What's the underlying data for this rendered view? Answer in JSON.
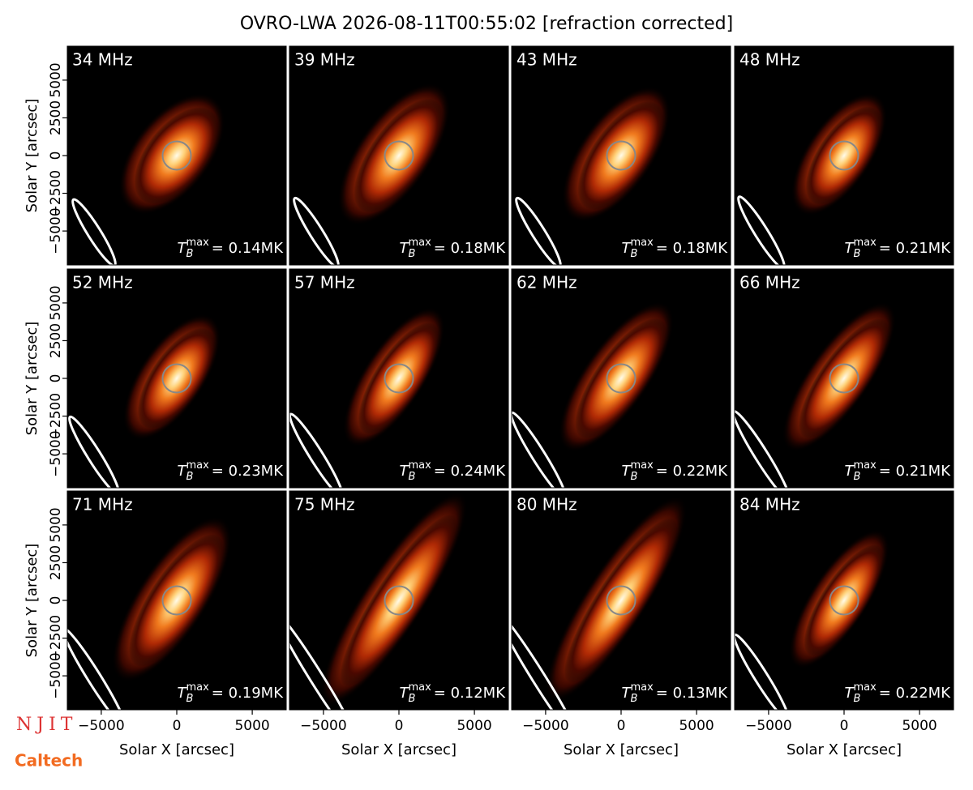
{
  "chart_data": {
    "type": "image_grid",
    "title": "OVRO-LWA 2026-08-11T00:55:02 [refraction corrected]",
    "xlabel": "Solar X [arcsec]",
    "ylabel": "Solar Y [arcsec]",
    "xlim": [
      -7250,
      7250
    ],
    "ylim": [
      -7250,
      7250
    ],
    "xticks": [
      {
        "value": -5000,
        "label": "−5000"
      },
      0,
      5000
    ],
    "yticks": [
      {
        "value": -5000,
        "label": "−5000"
      },
      {
        "value": -2500,
        "label": "−2500"
      },
      0,
      2500,
      5000
    ],
    "panels": [
      {
        "label": "34 MHz",
        "tb_max": {
          "symbol": "T",
          "subscript": "B",
          "superscript": "max",
          "text": "= 0.14MK"
        }
      },
      {
        "label": "39 MHz",
        "tb_max": {
          "symbol": "T",
          "subscript": "B",
          "superscript": "max",
          "text": "= 0.18MK"
        }
      },
      {
        "label": "43 MHz",
        "tb_max": {
          "symbol": "T",
          "subscript": "B",
          "superscript": "max",
          "text": "= 0.18MK"
        }
      },
      {
        "label": "48 MHz",
        "tb_max": {
          "symbol": "T",
          "subscript": "B",
          "superscript": "max",
          "text": "= 0.21MK"
        }
      },
      {
        "label": "52 MHz",
        "tb_max": {
          "symbol": "T",
          "subscript": "B",
          "superscript": "max",
          "text": "= 0.23MK"
        }
      },
      {
        "label": "57 MHz",
        "tb_max": {
          "symbol": "T",
          "subscript": "B",
          "superscript": "max",
          "text": "= 0.24MK"
        }
      },
      {
        "label": "62 MHz",
        "tb_max": {
          "symbol": "T",
          "subscript": "B",
          "superscript": "max",
          "text": "= 0.22MK"
        }
      },
      {
        "label": "66 MHz",
        "tb_max": {
          "symbol": "T",
          "subscript": "B",
          "superscript": "max",
          "text": "= 0.21MK"
        }
      },
      {
        "label": "71 MHz",
        "tb_max": {
          "symbol": "T",
          "subscript": "B",
          "superscript": "max",
          "text": "= 0.19MK"
        }
      },
      {
        "label": "75 MHz",
        "tb_max": {
          "symbol": "T",
          "subscript": "B",
          "superscript": "max",
          "text": "= 0.12MK"
        }
      },
      {
        "label": "80 MHz",
        "tb_max": {
          "symbol": "T",
          "subscript": "B",
          "superscript": "max",
          "text": "= 0.13MK"
        }
      },
      {
        "label": "84 MHz",
        "tb_max": {
          "symbol": "T",
          "subscript": "B",
          "superscript": "max",
          "text": "= 0.22MK"
        }
      }
    ],
    "logos": [
      "NJIT",
      "Caltech"
    ]
  }
}
